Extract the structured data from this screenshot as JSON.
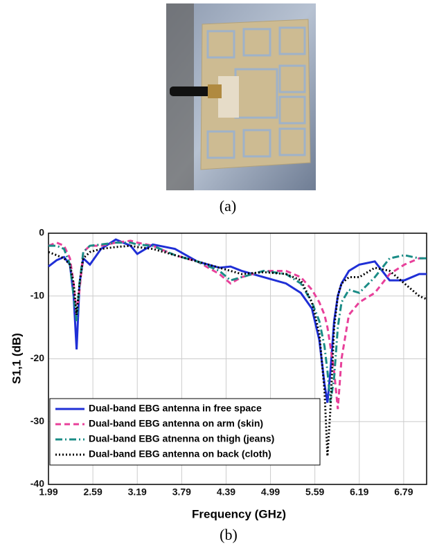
{
  "captions": [
    "(a)",
    "(b)"
  ],
  "chart_data": {
    "type": "line",
    "xlabel": "Frequency (GHz)",
    "ylabel": "S1,1 (dB)",
    "x": [
      1.99,
      2.1,
      2.2,
      2.28,
      2.33,
      2.37,
      2.41,
      2.46,
      2.55,
      2.7,
      2.9,
      3.1,
      3.19,
      3.4,
      3.7,
      4.0,
      4.3,
      4.45,
      4.6,
      4.9,
      5.2,
      5.4,
      5.55,
      5.65,
      5.72,
      5.76,
      5.8,
      5.85,
      5.9,
      5.95,
      6.05,
      6.19,
      6.4,
      6.6,
      6.8,
      7.0,
      7.1
    ],
    "series": [
      {
        "name": "Dual-band EBG antenna in free space",
        "color": "#1f2fd6",
        "style": "solid",
        "values": [
          -5.3,
          -4.3,
          -3.8,
          -5,
          -10,
          -18.5,
          -8,
          -4,
          -5,
          -2.5,
          -1,
          -2,
          -3.3,
          -1.8,
          -2.5,
          -4.5,
          -5.5,
          -5.3,
          -6,
          -7,
          -8,
          -9.5,
          -12,
          -17,
          -24,
          -27,
          -22,
          -14,
          -10,
          -8,
          -6,
          -5,
          -4.5,
          -7.5,
          -7.5,
          -6.5,
          -6.5
        ]
      },
      {
        "name": "Dual-band EBG antenna on arm (skin)",
        "color": "#e8409a",
        "style": "dashed",
        "values": [
          -2,
          -1.5,
          -2,
          -4,
          -8,
          -13,
          -9,
          -3,
          -2,
          -2,
          -1.5,
          -1.2,
          -1.5,
          -2,
          -3.5,
          -4.5,
          -6.5,
          -8,
          -7,
          -6,
          -6,
          -7,
          -9,
          -11,
          -13,
          -15,
          -18,
          -22,
          -28,
          -20,
          -13,
          -11,
          -9.5,
          -6.5,
          -5,
          -4,
          -4
        ]
      },
      {
        "name": "Dual-band EBG atnenna on thigh (jeans)",
        "color": "#1a8c86",
        "style": "dashdot",
        "values": [
          -2,
          -2,
          -2.5,
          -5,
          -10,
          -14,
          -8,
          -3,
          -2,
          -1.8,
          -1.5,
          -1.5,
          -1.8,
          -2,
          -3.5,
          -4.5,
          -6,
          -7.5,
          -7,
          -6,
          -6.5,
          -8,
          -11,
          -14,
          -18,
          -22,
          -27,
          -23,
          -15,
          -11,
          -9,
          -9.5,
          -7,
          -4,
          -3.5,
          -4,
          -4
        ]
      },
      {
        "name": "Dual-band EBG antenna on back (cloth)",
        "color": "#000000",
        "style": "dotted",
        "values": [
          -3,
          -3.5,
          -4,
          -5,
          -8,
          -13,
          -8,
          -4,
          -3,
          -2.5,
          -2.2,
          -2,
          -2.2,
          -2.5,
          -3.5,
          -4.5,
          -5.5,
          -6,
          -6.5,
          -6.2,
          -6.5,
          -7.5,
          -11,
          -16,
          -25,
          -35.5,
          -28,
          -15,
          -10,
          -8,
          -7,
          -7,
          -5.5,
          -6,
          -8,
          -10,
          -10.5
        ]
      }
    ],
    "xlim": [
      1.99,
      7.1
    ],
    "xticks": [
      1.99,
      2.59,
      3.19,
      3.79,
      4.39,
      4.99,
      5.59,
      6.19,
      6.79
    ],
    "ylim": [
      -40,
      0
    ],
    "yticks": [
      0,
      -10,
      -20,
      -30,
      -40
    ],
    "grid": true,
    "legend": "lower left"
  }
}
